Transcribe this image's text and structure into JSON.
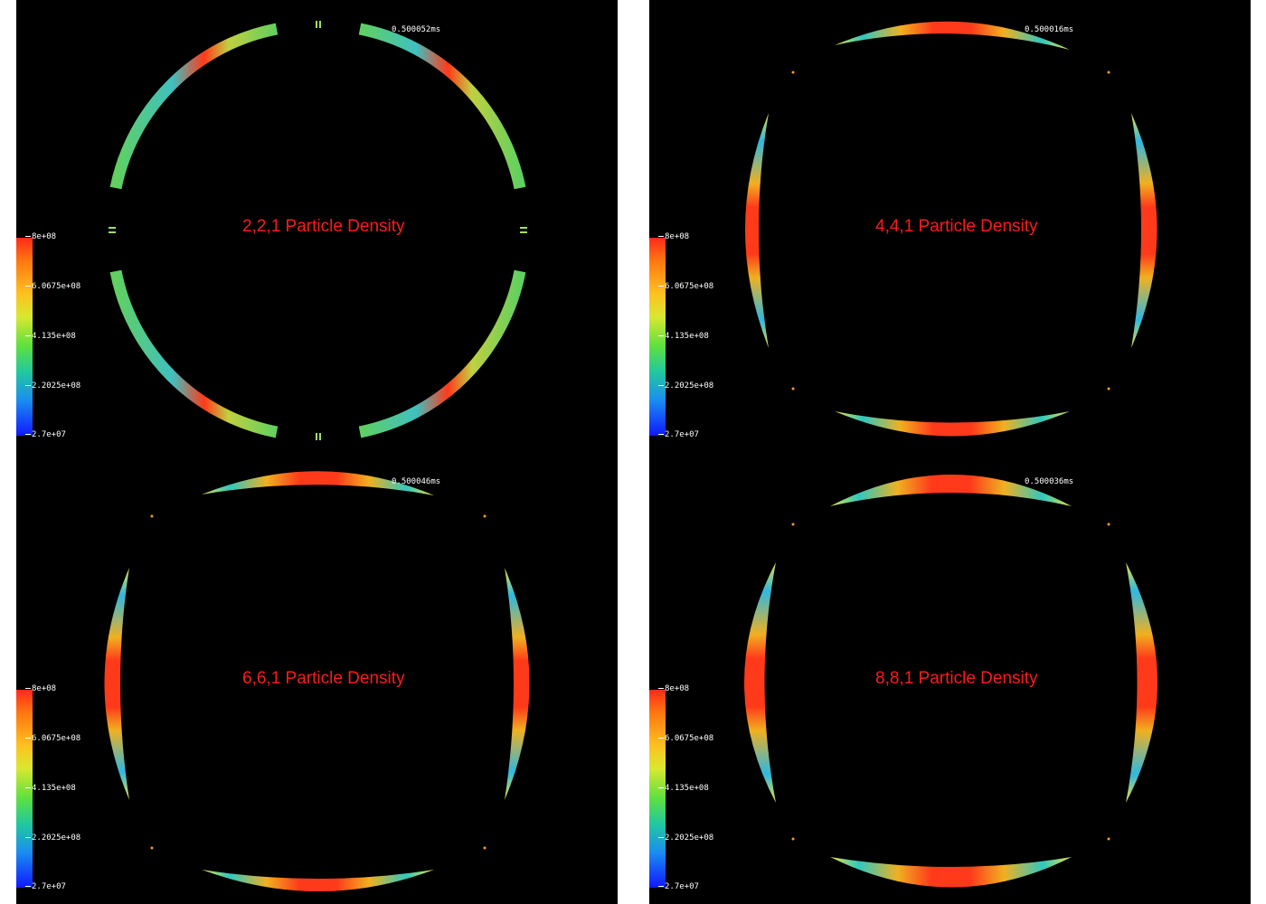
{
  "panels": [
    {
      "title": "2,2,1 Particle Density",
      "time": "0.500052ms"
    },
    {
      "title": "4,4,1 Particle Density",
      "time": "0.500016ms"
    },
    {
      "title": "6,6,1 Particle Density",
      "time": "0.500046ms"
    },
    {
      "title": "8,8,1 Particle Density",
      "time": "0.500036ms"
    }
  ],
  "colorbar": {
    "ticks": [
      "8e+08",
      "6.0675e+08",
      "4.135e+08",
      "2.2025e+08",
      "2.7e+07"
    ],
    "colors": [
      "#ff2a1a",
      "#ff7a10",
      "#ffc020",
      "#5ce040",
      "#20c8a0",
      "#1a8ef0",
      "#1018ff"
    ]
  }
}
